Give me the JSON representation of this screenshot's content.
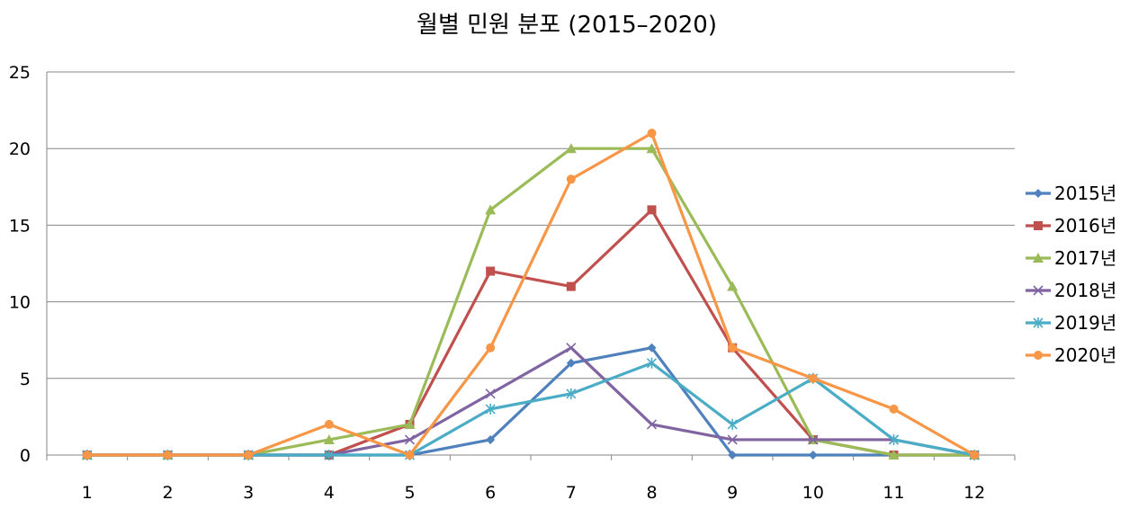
{
  "chart_data": {
    "type": "line",
    "title": "월별 민원 분포 (2015–2020)",
    "xlabel": "",
    "ylabel": "",
    "categories": [
      "1",
      "2",
      "3",
      "4",
      "5",
      "6",
      "7",
      "8",
      "9",
      "10",
      "11",
      "12"
    ],
    "ylim": [
      0,
      25
    ],
    "yticks": [
      "0",
      "5",
      "10",
      "15",
      "20",
      "25"
    ],
    "grid": true,
    "legend_position": "right",
    "series": [
      {
        "name": "2015년",
        "color": "#4F81BD",
        "marker": "diamond",
        "values": [
          0,
          0,
          0,
          0,
          0,
          1,
          6,
          7,
          0,
          0,
          0,
          0
        ]
      },
      {
        "name": "2016년",
        "color": "#C0504D",
        "marker": "square",
        "values": [
          0,
          0,
          0,
          0,
          2,
          12,
          11,
          16,
          7,
          1,
          0,
          0
        ]
      },
      {
        "name": "2017년",
        "color": "#9BBB59",
        "marker": "triangle",
        "values": [
          0,
          0,
          0,
          1,
          2,
          16,
          20,
          20,
          11,
          1,
          0,
          0
        ]
      },
      {
        "name": "2018년",
        "color": "#8064A2",
        "marker": "x",
        "values": [
          0,
          0,
          0,
          0,
          1,
          4,
          7,
          2,
          1,
          1,
          1,
          0
        ]
      },
      {
        "name": "2019년",
        "color": "#4BACC6",
        "marker": "star",
        "values": [
          0,
          0,
          0,
          0,
          0,
          3,
          4,
          6,
          2,
          5,
          1,
          0
        ]
      },
      {
        "name": "2020년",
        "color": "#F79646",
        "marker": "circle",
        "values": [
          0,
          0,
          0,
          2,
          0,
          7,
          18,
          21,
          7,
          5,
          3,
          0
        ]
      }
    ]
  }
}
